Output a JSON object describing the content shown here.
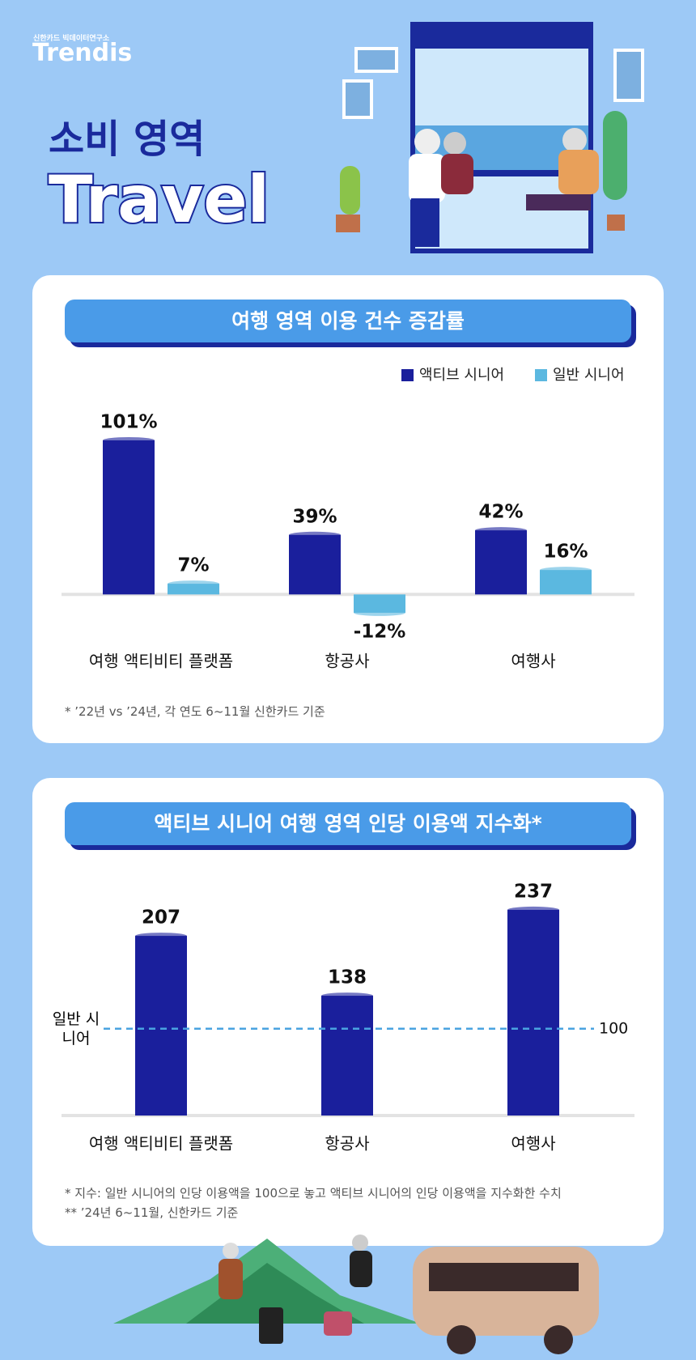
{
  "header": {
    "logo_small": "신한카드 빅데이터연구소",
    "logo": "Trendis",
    "title": "소비 영역",
    "subtitle": "Travel"
  },
  "chart_data": [
    {
      "type": "bar",
      "title": "여행 영역 이용 건수 증감률",
      "categories": [
        "여행 액티비티 플랫폼",
        "항공사",
        "여행사"
      ],
      "series": [
        {
          "name": "액티브 시니어",
          "color": "#1a1f9c",
          "values": [
            101,
            39,
            42
          ],
          "value_labels": [
            "101%",
            "39%",
            "42%"
          ]
        },
        {
          "name": "일반 시니어",
          "color": "#5bb8e0",
          "values": [
            7,
            -12,
            16
          ],
          "value_labels": [
            "7%",
            "-12%",
            "16%"
          ]
        }
      ],
      "ylim": [
        -20,
        110
      ],
      "legend": "top-right",
      "notes": [
        "* ’22년 vs ’24년, 각 연도 6~11월 신한카드 기준"
      ]
    },
    {
      "type": "bar",
      "title": "액티브 시니어 여행 영역 인당 이용액 지수화*",
      "categories": [
        "여행 액티비티 플랫폼",
        "항공사",
        "여행사"
      ],
      "values": [
        207,
        138,
        237
      ],
      "color": "#1a1f9c",
      "ylim": [
        0,
        250
      ],
      "reference_line": {
        "value": 100,
        "label": "일반 시니어"
      },
      "notes": [
        "* 지수: 일반 시니어의 인당 이용액을 100으로 놓고 액티브 시니어의 인당 이용액을 지수화한 수치",
        "** ’24년 6~11월, 신한카드 기준"
      ]
    }
  ]
}
